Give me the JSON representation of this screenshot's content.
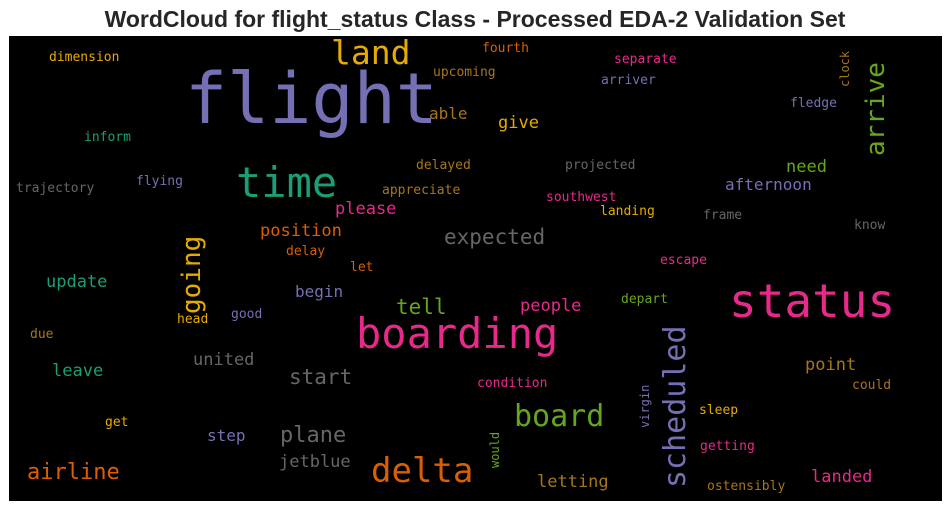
{
  "title": "WordCloud for flight_status Class - Processed EDA-2 Validation Set",
  "words": [
    {
      "text": "flight",
      "color": "#7570b3"
    },
    {
      "text": "status",
      "color": "#e7298a"
    },
    {
      "text": "boarding",
      "color": "#e7298a"
    },
    {
      "text": "time",
      "color": "#1b9e77"
    },
    {
      "text": "delta",
      "color": "#d95f02"
    },
    {
      "text": "land",
      "color": "#e6ab02"
    },
    {
      "text": "scheduled",
      "color": "#7570b3"
    },
    {
      "text": "board",
      "color": "#66a61e"
    },
    {
      "text": "arrive",
      "color": "#66a61e"
    },
    {
      "text": "going",
      "color": "#e6ab02"
    },
    {
      "text": "expected",
      "color": "#666666"
    },
    {
      "text": "airline",
      "color": "#d95f02"
    },
    {
      "text": "plane",
      "color": "#666666"
    },
    {
      "text": "start",
      "color": "#666666"
    },
    {
      "text": "tell",
      "color": "#66a61e"
    },
    {
      "text": "united",
      "color": "#666666"
    },
    {
      "text": "people",
      "color": "#e7298a"
    },
    {
      "text": "position",
      "color": "#d95f02"
    },
    {
      "text": "please",
      "color": "#e7298a"
    },
    {
      "text": "afternoon",
      "color": "#7570b3"
    },
    {
      "text": "need",
      "color": "#66a61e"
    },
    {
      "text": "update",
      "color": "#1b9e77"
    },
    {
      "text": "leave",
      "color": "#1b9e77"
    },
    {
      "text": "begin",
      "color": "#7570b3"
    },
    {
      "text": "jetblue",
      "color": "#666666"
    },
    {
      "text": "step",
      "color": "#7570b3"
    },
    {
      "text": "point",
      "color": "#a6761d"
    },
    {
      "text": "landed",
      "color": "#e7298a"
    },
    {
      "text": "letting",
      "color": "#a6761d"
    },
    {
      "text": "able",
      "color": "#a6761d"
    },
    {
      "text": "give",
      "color": "#e6ab02"
    },
    {
      "text": "fourth",
      "color": "#d95f02"
    },
    {
      "text": "upcoming",
      "color": "#a6761d"
    },
    {
      "text": "separate",
      "color": "#e7298a"
    },
    {
      "text": "arriver",
      "color": "#7570b3"
    },
    {
      "text": "clock",
      "color": "#a6761d"
    },
    {
      "text": "fledge",
      "color": "#7570b3"
    },
    {
      "text": "dimension",
      "color": "#e6ab02"
    },
    {
      "text": "inform",
      "color": "#1b9e77"
    },
    {
      "text": "trajectory",
      "color": "#666666"
    },
    {
      "text": "flying",
      "color": "#7570b3"
    },
    {
      "text": "delayed",
      "color": "#a6761d"
    },
    {
      "text": "projected",
      "color": "#666666"
    },
    {
      "text": "appreciate",
      "color": "#a6761d"
    },
    {
      "text": "southwest",
      "color": "#e7298a"
    },
    {
      "text": "landing",
      "color": "#e6ab02"
    },
    {
      "text": "frame",
      "color": "#666666"
    },
    {
      "text": "know",
      "color": "#666666"
    },
    {
      "text": "delay",
      "color": "#d95f02"
    },
    {
      "text": "let",
      "color": "#d95f02"
    },
    {
      "text": "escape",
      "color": "#e7298a"
    },
    {
      "text": "depart",
      "color": "#66a61e"
    },
    {
      "text": "good",
      "color": "#7570b3"
    },
    {
      "text": "head",
      "color": "#e6ab02"
    },
    {
      "text": "due",
      "color": "#a6761d"
    },
    {
      "text": "condition",
      "color": "#e7298a"
    },
    {
      "text": "virgin",
      "color": "#7570b3"
    },
    {
      "text": "could",
      "color": "#a6761d"
    },
    {
      "text": "sleep",
      "color": "#e6ab02"
    },
    {
      "text": "get",
      "color": "#e6ab02"
    },
    {
      "text": "would",
      "color": "#66a61e"
    },
    {
      "text": "getting",
      "color": "#e7298a"
    },
    {
      "text": "ostensibly",
      "color": "#a6761d"
    }
  ]
}
